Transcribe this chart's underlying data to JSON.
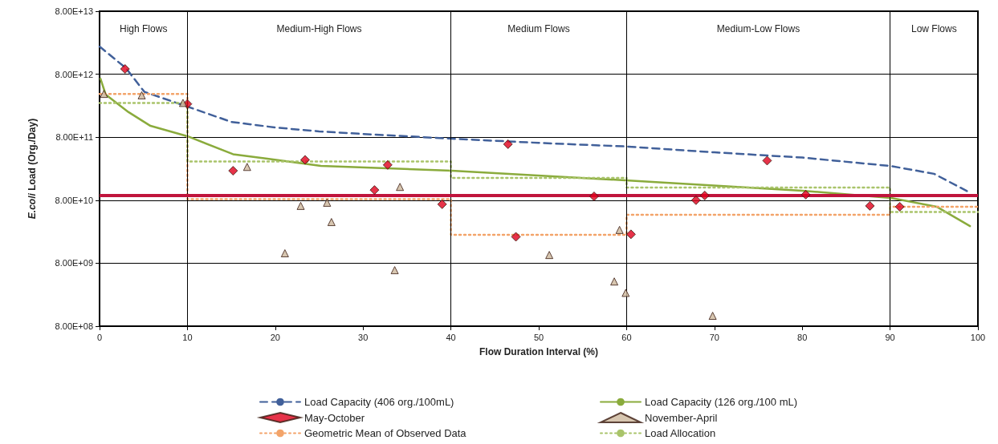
{
  "chart_data": {
    "type": "line",
    "xlabel": "Flow Duration Interval (%)",
    "ylabel": "E.coli Load (Org./Day)",
    "xlim": [
      0,
      100
    ],
    "xticks": [
      0,
      10,
      20,
      30,
      40,
      50,
      60,
      70,
      80,
      90,
      100
    ],
    "ylim": [
      800000000.0,
      80000000000000.0
    ],
    "yticks": [
      {
        "value": 800000000.0,
        "label": "8.00E+08"
      },
      {
        "value": 8000000000.0,
        "label": "8.00E+09"
      },
      {
        "value": 80000000000.0,
        "label": "8.00E+10"
      },
      {
        "value": 800000000000.0,
        "label": "8.00E+11"
      },
      {
        "value": 8000000000000.0,
        "label": "8.00E+12"
      },
      {
        "value": 80000000000000.0,
        "label": "8.00E+13"
      }
    ],
    "log": "y",
    "grid": "y",
    "legend": "bottom",
    "series": [
      {
        "name": "Load Capacity (406 org./100mL)",
        "color": "#41609a",
        "line_style": "dashed",
        "marker": "none",
        "x": [
          0,
          3,
          5.1,
          10,
          15,
          20,
          25,
          30,
          40,
          50,
          60,
          70,
          80,
          90,
          95,
          99
        ],
        "values": [
          22000000000000.0,
          10000000000000.0,
          4200000000000.0,
          2450000000000.0,
          1400000000000.0,
          1140000000000.0,
          990000000000.0,
          900000000000.0,
          760000000000.0,
          650000000000.0,
          570000000000.0,
          460000000000.0,
          380000000000.0,
          280000000000.0,
          210000000000.0,
          107000000000.0
        ]
      },
      {
        "name": "Load Capacity (126 org./100 mL)",
        "color": "#8aab3c",
        "line_style": "solid",
        "marker": "none",
        "x": [
          0.1,
          0.7,
          3.3,
          5.8,
          10,
          15.2,
          19.1,
          25.2,
          40.1,
          61.8,
          80,
          90.1,
          95.3,
          99.1
        ],
        "values": [
          6800000000000.0,
          3800000000000.0,
          2000000000000.0,
          1210000000000.0,
          830000000000.0,
          430000000000.0,
          365000000000.0,
          280000000000.0,
          235000000000.0,
          160000000000.0,
          113000000000.0,
          87000000000.0,
          63000000000.0,
          31000000000.0
        ]
      },
      {
        "name": "May-October",
        "type": "scatter",
        "color": "#e0001b",
        "marker": "diamond",
        "x": [
          2.9,
          10.0,
          15.2,
          23.4,
          31.3,
          32.8,
          39.0,
          46.5,
          47.4,
          56.3,
          60.5,
          67.9,
          68.9,
          76.0,
          80.4,
          87.7,
          91.1
        ],
        "values": [
          9700000000000.0,
          2700000000000.0,
          235000000000.0,
          350000000000.0,
          116000000000.0,
          290000000000.0,
          69000000000.0,
          620000000000.0,
          21000000000.0,
          92000000000.0,
          23000000000.0,
          80000000000.0,
          95000000000.0,
          340000000000.0,
          98000000000.0,
          65000000000.0,
          63000000000.0
        ]
      },
      {
        "name": "November-April",
        "type": "scatter",
        "color": "#cdb89c",
        "marker": "triangle",
        "x": [
          0.5,
          4.8,
          9.5,
          16.8,
          21.1,
          22.9,
          25.9,
          26.4,
          34.2,
          33.6,
          51.2,
          58.6,
          59.2,
          59.9,
          69.8
        ],
        "values": [
          3900000000000.0,
          3700000000000.0,
          2800000000000.0,
          270000000000.0,
          11500000000.0,
          65000000000.0,
          73000000000.0,
          36000000000.0,
          130000000000.0,
          6200000000.0,
          10800000000.0,
          4100000000.0,
          27000000000.0,
          2700000000.0,
          1170000000.0
        ]
      },
      {
        "name": "Geometric Mean of Observed Data",
        "type": "step",
        "color": "#f3a46a",
        "line_style": "dotted",
        "marker": "none",
        "x": [
          0,
          10,
          40,
          60,
          90,
          100
        ],
        "values": [
          3900000000000.0,
          83000000000.0,
          22500000000.0,
          47000000000.0,
          63000000000.0,
          63000000000.0
        ]
      },
      {
        "name": "Load Allocation",
        "type": "step",
        "color": "#a9c46a",
        "line_style": "dotted",
        "marker": "none",
        "x": [
          0,
          10,
          40,
          60,
          90,
          100
        ],
        "values": [
          2800000000000.0,
          330000000000.0,
          180000000000.0,
          127000000000.0,
          52000000000.0,
          52000000000.0
        ]
      }
    ],
    "ref_lines": [
      {
        "axis": "x",
        "value": 10,
        "color": "#000000"
      },
      {
        "axis": "x",
        "value": 40,
        "color": "#000000"
      },
      {
        "axis": "x",
        "value": 60,
        "color": "#000000"
      },
      {
        "axis": "x",
        "value": 90,
        "color": "#000000"
      },
      {
        "axis": "y",
        "value": 95000000000.0,
        "color": "#c0143c"
      }
    ],
    "annotations": [
      "High Flows",
      "Medium-High Flows",
      "Medium Flows",
      "Medium-Low Flows",
      "Low Flows"
    ]
  }
}
